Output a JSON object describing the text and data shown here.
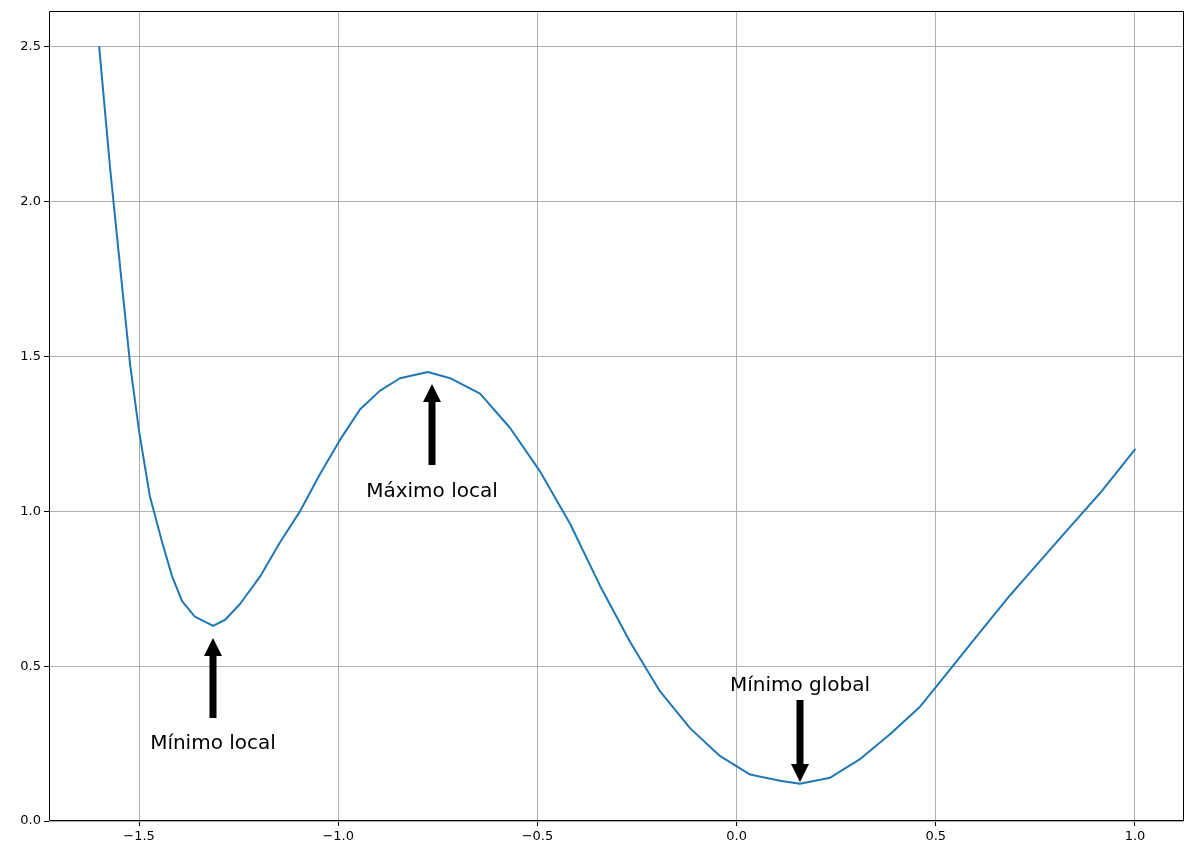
{
  "chart_data": {
    "type": "line",
    "x": [
      -1.6,
      -1.572,
      -1.542,
      -1.522,
      -1.5,
      -1.473,
      -1.442,
      -1.417,
      -1.392,
      -1.36,
      -1.314,
      -1.284,
      -1.247,
      -1.196,
      -1.146,
      -1.096,
      -1.046,
      -0.996,
      -0.945,
      -0.895,
      -0.845,
      -0.775,
      -0.719,
      -0.644,
      -0.569,
      -0.494,
      -0.418,
      -0.343,
      -0.268,
      -0.193,
      -0.117,
      -0.042,
      0.034,
      0.109,
      0.159,
      0.235,
      0.31,
      0.385,
      0.461,
      0.536,
      0.611,
      0.687,
      0.762,
      0.837,
      0.913,
      1.0
    ],
    "series": [
      {
        "color": "#1f77b4",
        "values": [
          2.5,
          2.1,
          1.72,
          1.47,
          1.26,
          1.05,
          0.9,
          0.79,
          0.71,
          0.66,
          0.63,
          0.65,
          0.7,
          0.79,
          0.9,
          1.0,
          1.12,
          1.23,
          1.33,
          1.39,
          1.43,
          1.45,
          1.43,
          1.38,
          1.27,
          1.13,
          0.96,
          0.76,
          0.58,
          0.42,
          0.3,
          0.21,
          0.15,
          0.13,
          0.12,
          0.14,
          0.2,
          0.28,
          0.37,
          0.49,
          0.61,
          0.73,
          0.84,
          0.95,
          1.06,
          1.2
        ]
      }
    ],
    "xlim": [
      -1.726,
      1.123
    ],
    "ylim": [
      0,
      2.616
    ],
    "xticks": [
      {
        "value": -1.5,
        "label": "−1.5"
      },
      {
        "value": -1,
        "label": "−1.0"
      },
      {
        "value": -0.5,
        "label": "−0.5"
      },
      {
        "value": 0,
        "label": "0.0"
      },
      {
        "value": 0.5,
        "label": "0.5"
      },
      {
        "value": 1,
        "label": "1.0"
      }
    ],
    "yticks": [
      {
        "value": 0,
        "label": "0.0"
      },
      0.5,
      {
        "value": 1,
        "label": "1.0"
      },
      1.5,
      {
        "value": 2,
        "label": "2.0"
      },
      2.5
    ],
    "grid": true,
    "marker": "none",
    "line_style": "solid",
    "annotations": [
      "Mínimo local",
      "Máximo local",
      "Mínimo global"
    ]
  }
}
